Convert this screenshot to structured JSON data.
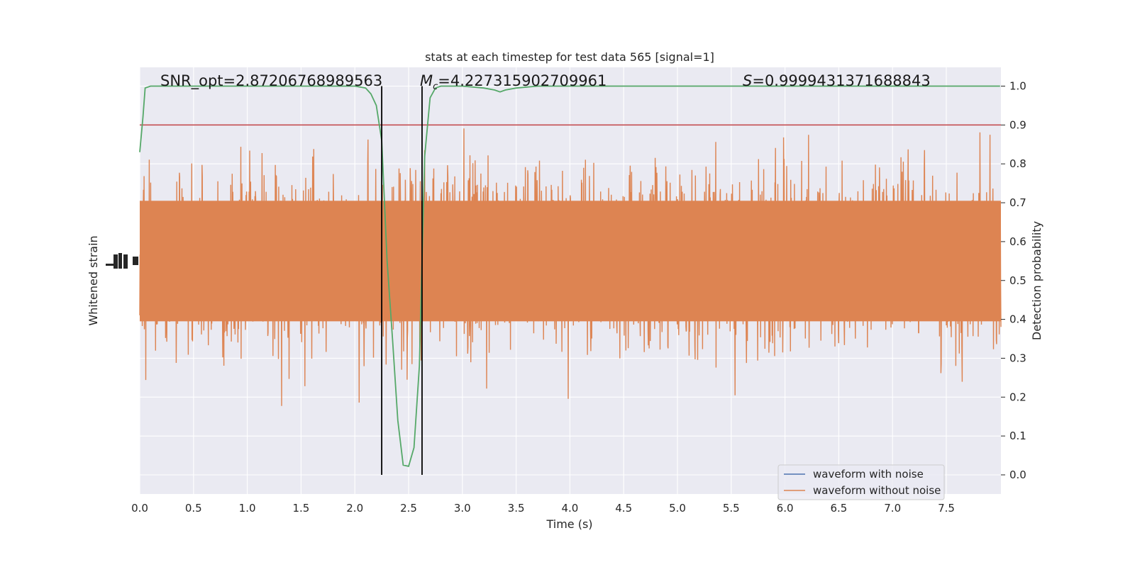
{
  "chart_data": {
    "type": "line",
    "title": "stats at each timestep for test data 565 [signal=1]",
    "xlabel": "Time (s)",
    "ylabel_left": "Whitened strain",
    "ylabel_right": "Detection probability",
    "xlim": [
      0.0,
      8.0
    ],
    "right_ylim": [
      -0.05,
      1.05
    ],
    "x_ticks": [
      "0.0",
      "0.5",
      "1.0",
      "1.5",
      "2.0",
      "2.5",
      "3.0",
      "3.5",
      "4.0",
      "4.5",
      "5.0",
      "5.5",
      "6.0",
      "6.5",
      "7.0",
      "7.5"
    ],
    "right_ticks": [
      "0.0",
      "0.1",
      "0.2",
      "0.3",
      "0.4",
      "0.5",
      "0.6",
      "0.7",
      "0.8",
      "0.9",
      "1.0"
    ],
    "grid": true,
    "legend_position": "lower right",
    "annotations": {
      "snr": "SNR_opt=2.87206768989563",
      "mc_symbol": "M",
      "mc_sub": "c",
      "mc_value": "=4.227315902709961",
      "s_symbol": "S",
      "s_value": "=0.9999431371688843"
    },
    "series": [
      {
        "name": "waveform with noise",
        "color": "#4c72b0",
        "kind": "strain_noise"
      },
      {
        "name": "waveform without noise",
        "color": "#dd8452",
        "kind": "strain"
      },
      {
        "kind": "detection_probability",
        "color": "#55a868",
        "x": [
          0.0,
          0.03,
          0.05,
          0.1,
          0.5,
          1.0,
          1.5,
          2.0,
          2.1,
          2.15,
          2.2,
          2.25,
          2.3,
          2.35,
          2.4,
          2.45,
          2.5,
          2.55,
          2.6,
          2.62,
          2.65,
          2.7,
          2.75,
          2.8,
          3.0,
          3.2,
          3.3,
          3.35,
          3.4,
          3.5,
          3.7,
          4.0,
          5.0,
          6.0,
          7.0,
          7.5,
          8.0
        ],
        "y": [
          0.83,
          0.92,
          0.995,
          1.0,
          1.0,
          1.0,
          1.0,
          1.0,
          0.995,
          0.98,
          0.95,
          0.86,
          0.55,
          0.35,
          0.14,
          0.025,
          0.022,
          0.07,
          0.28,
          0.5,
          0.82,
          0.97,
          0.995,
          1.0,
          1.0,
          0.995,
          0.99,
          0.985,
          0.99,
          0.995,
          1.0,
          1.0,
          1.0,
          1.0,
          1.0,
          1.0,
          1.0
        ]
      }
    ],
    "threshold": {
      "value": 0.9,
      "color": "#c44e52"
    },
    "vlines": {
      "x": [
        2.25,
        2.625
      ],
      "color": "#000000"
    }
  }
}
